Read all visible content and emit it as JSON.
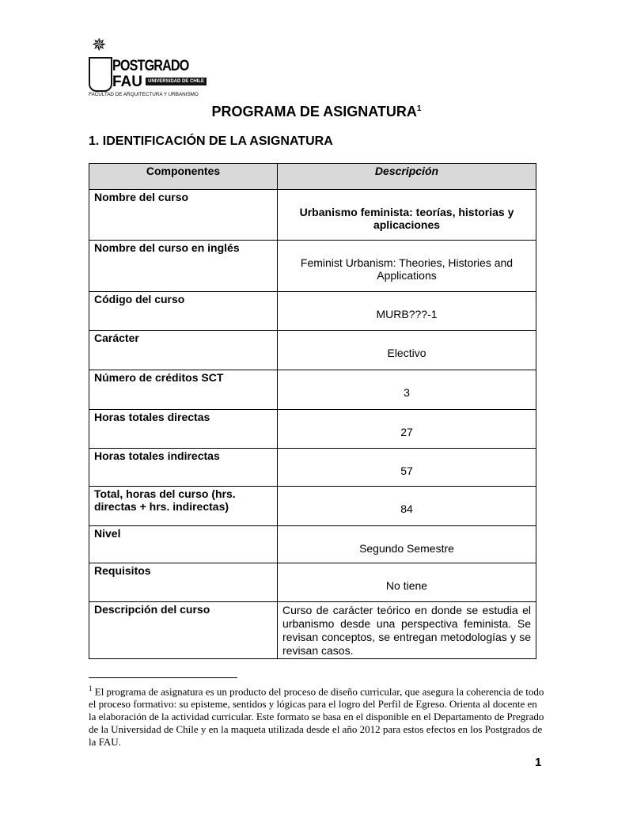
{
  "logo": {
    "name": "POSTGRADO",
    "sub": "FAU",
    "university": "UNIVERSIDAD DE CHILE",
    "faculty": "FACULTAD DE ARQUITECTURA Y URBANISMO"
  },
  "title": "PROGRAMA DE ASIGNATURA",
  "title_note": "1",
  "section": "1. IDENTIFICACIÓN DE LA ASIGNATURA",
  "table": {
    "headers": [
      "Componentes",
      "Descripción"
    ],
    "rows": [
      {
        "label": "Nombre del curso",
        "value": "Urbanismo feminista: teorías, historias y aplicaciones"
      },
      {
        "label": "Nombre del curso en inglés",
        "value": "Feminist Urbanism: Theories, Histories and Applications"
      },
      {
        "label": "Código del curso",
        "value": "MURB???-1"
      },
      {
        "label": "Carácter",
        "value": "Electivo"
      },
      {
        "label": "Número de créditos SCT",
        "value": "3"
      },
      {
        "label": "Horas totales directas",
        "value": "27"
      },
      {
        "label": "Horas totales indirectas",
        "value": "57"
      },
      {
        "label": "Total, horas del curso (hrs. directas + hrs. indirectas)",
        "value": "84"
      },
      {
        "label": "Nivel",
        "value": "Segundo Semestre"
      },
      {
        "label": "Requisitos",
        "value": "No tiene"
      },
      {
        "label": "Descripción del curso",
        "value": "Curso de carácter teórico en donde se estudia el urbanismo desde una perspectiva feminista. Se revisan conceptos, se entregan metodologías y se revisan casos."
      }
    ]
  },
  "footnote": {
    "mark": "1",
    "text": "El programa de asignatura es un producto del proceso de diseño curricular, que asegura la coherencia de todo el proceso formativo: su episteme, sentidos y lógicas para el logro del Perfil de Egreso. Orienta al docente en la elaboración de la actividad curricular. Este formato se basa en el disponible en el Departamento de Pregrado de la Universidad de Chile y en la maqueta utilizada desde el año 2012 para estos efectos en los Postgrados de la FAU."
  },
  "page_number": "1"
}
